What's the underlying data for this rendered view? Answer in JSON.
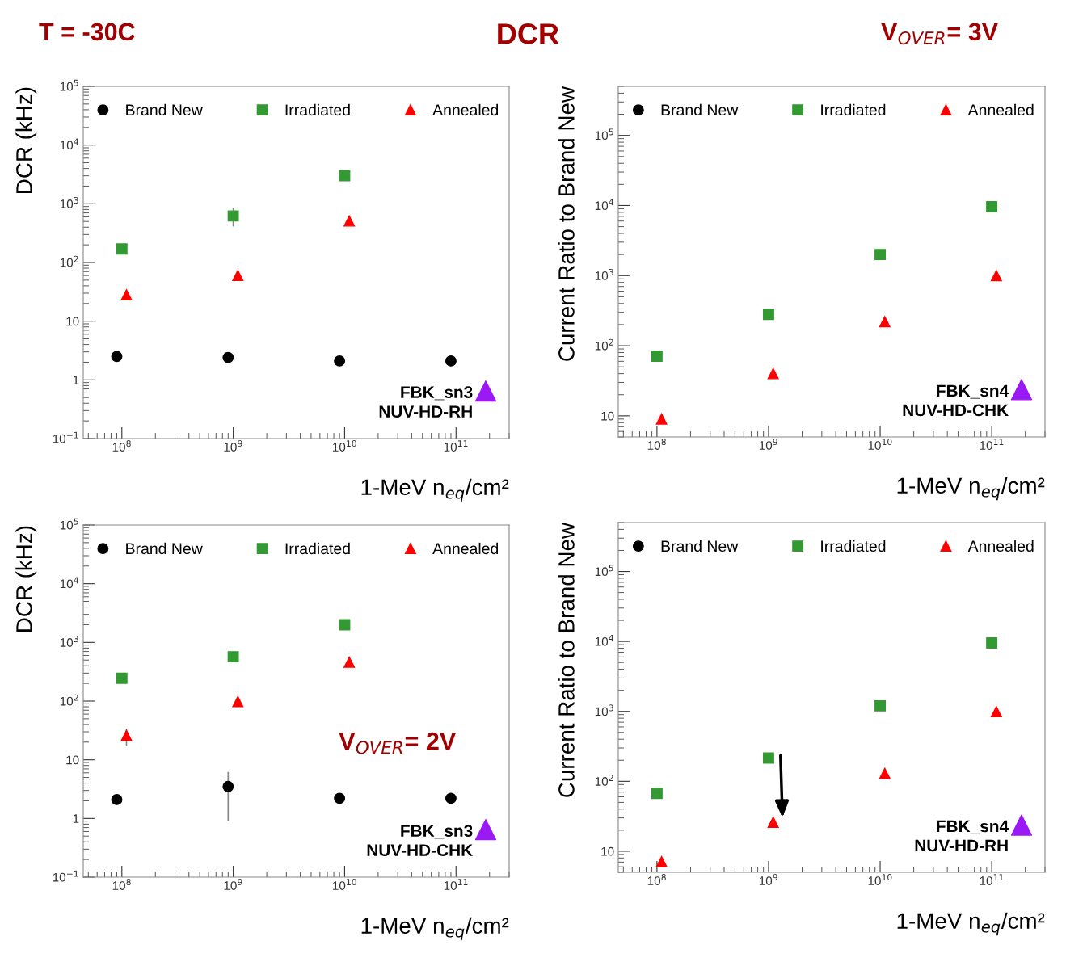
{
  "chart_data": [
    {
      "type": "scatter",
      "title": "DCR",
      "annotations": [
        "T = -30C",
        "FBK_sn3\nNUV-HD-RH"
      ],
      "xlabel": "1-MeV n$_{eq}$/cm²",
      "ylabel": "DCR (kHz)",
      "log": "xy",
      "grid": false,
      "legend": "top",
      "xlim": [
        45000000.0,
        300000000000.0
      ],
      "ylim": [
        0.1,
        100000
      ],
      "xticks": [
        {
          "value": 100000000.0,
          "label": "10$^{8}$"
        },
        {
          "value": 1000000000.0,
          "label": "10$^{9}$"
        },
        {
          "value": 10000000000.0,
          "label": "10$^{10}$"
        },
        {
          "value": 100000000000.0,
          "label": "10$^{11}$"
        }
      ],
      "yticks": [
        {
          "value": 0.1,
          "label": "10$^{−1}$"
        },
        1,
        10,
        {
          "value": 100,
          "label": "10$^{2}$"
        },
        {
          "value": 1000,
          "label": "10$^{3}$"
        },
        {
          "value": 10000,
          "label": "10$^{4}$"
        },
        {
          "value": 100000,
          "label": "10$^{5}$"
        }
      ],
      "series": [
        {
          "name": "Brand New",
          "color": "#000000",
          "marker": "circle",
          "x": [
            90000000.0,
            900000000.0,
            9000000000.0,
            90000000000.0
          ],
          "values": [
            2.5,
            2.4,
            2.1,
            2.1
          ]
        },
        {
          "name": "Irradiated",
          "color": "#339933",
          "marker": "square",
          "x": [
            100000000.0,
            1000000000.0,
            10000000000.0
          ],
          "values": [
            170,
            620,
            3000
          ],
          "errors": [
            null,
            [
              410,
              860
            ],
            null
          ]
        },
        {
          "name": "Annealed",
          "color": "#ff0000",
          "marker": "triangle",
          "x": [
            110000000.0,
            1100000000.0,
            11000000000.0
          ],
          "values": [
            28,
            60,
            510
          ]
        }
      ]
    },
    {
      "type": "scatter",
      "annotations": [
        "V$_{OVER}$= 3V",
        "FBK_sn4\nNUV-HD-CHK"
      ],
      "xlabel": "1-MeV n$_{eq}$/cm²",
      "ylabel": "Current Ratio to Brand New",
      "log": "xy",
      "grid": false,
      "legend": "top",
      "xlim": [
        45000000.0,
        300000000000.0
      ],
      "ylim": [
        5,
        500000
      ],
      "xticks": [
        {
          "value": 100000000.0,
          "label": "10$^{8}$"
        },
        {
          "value": 1000000000.0,
          "label": "10$^{9}$"
        },
        {
          "value": 10000000000.0,
          "label": "10$^{10}$"
        },
        {
          "value": 100000000000.0,
          "label": "10$^{11}$"
        }
      ],
      "yticks": [
        10,
        {
          "value": 100,
          "label": "10$^{2}$"
        },
        {
          "value": 1000,
          "label": "10$^{3}$"
        },
        {
          "value": 10000,
          "label": "10$^{4}$"
        },
        {
          "value": 100000,
          "label": "10$^{5}$"
        }
      ],
      "series": [
        {
          "name": "Brand New",
          "color": "#000000",
          "marker": "circle"
        },
        {
          "name": "Irradiated",
          "color": "#339933",
          "marker": "square",
          "x": [
            100000000.0,
            1000000000.0,
            10000000000.0,
            100000000000.0
          ],
          "values": [
            71,
            280,
            2000,
            9600
          ]
        },
        {
          "name": "Annealed",
          "color": "#ff0000",
          "marker": "triangle",
          "x": [
            110000000.0,
            1100000000.0,
            11000000000.0,
            110000000000.0
          ],
          "values": [
            9,
            40,
            220,
            1000
          ]
        }
      ]
    },
    {
      "type": "scatter",
      "annotations": [
        "V$_{OVER}$= 2V",
        "FBK_sn3\nNUV-HD-CHK"
      ],
      "xlabel": "1-MeV n$_{eq}$/cm²",
      "ylabel": "DCR (kHz)",
      "log": "xy",
      "grid": false,
      "legend": "top",
      "xlim": [
        45000000.0,
        300000000000.0
      ],
      "ylim": [
        0.1,
        100000
      ],
      "xticks": [
        {
          "value": 100000000.0,
          "label": "10$^{8}$"
        },
        {
          "value": 1000000000.0,
          "label": "10$^{9}$"
        },
        {
          "value": 10000000000.0,
          "label": "10$^{10}$"
        },
        {
          "value": 100000000000.0,
          "label": "10$^{11}$"
        }
      ],
      "yticks": [
        {
          "value": 0.1,
          "label": "10$^{−1}$"
        },
        1,
        10,
        {
          "value": 100,
          "label": "10$^{2}$"
        },
        {
          "value": 1000,
          "label": "10$^{3}$"
        },
        {
          "value": 10000,
          "label": "10$^{4}$"
        },
        {
          "value": 100000,
          "label": "10$^{5}$"
        }
      ],
      "series": [
        {
          "name": "Brand New",
          "color": "#000000",
          "marker": "circle",
          "x": [
            90000000.0,
            900000000.0,
            9000000000.0,
            90000000000.0
          ],
          "values": [
            2.1,
            3.5,
            2.2,
            2.2
          ],
          "errors": [
            null,
            [
              0.9,
              6.2
            ],
            null,
            null
          ]
        },
        {
          "name": "Irradiated",
          "color": "#339933",
          "marker": "square",
          "x": [
            100000000.0,
            1000000000.0,
            10000000000.0
          ],
          "values": [
            245,
            570,
            2000
          ]
        },
        {
          "name": "Annealed",
          "color": "#ff0000",
          "marker": "triangle",
          "x": [
            110000000.0,
            1100000000.0,
            11000000000.0
          ],
          "values": [
            26,
            98,
            460
          ],
          "errors": [
            [
              17,
              34
            ],
            null,
            null
          ]
        }
      ]
    },
    {
      "type": "scatter",
      "annotations": [
        "FBK_sn4\nNUV-HD-RH"
      ],
      "xlabel": "1-MeV n$_{eq}$/cm²",
      "ylabel": "Current Ratio to Brand New",
      "log": "xy",
      "grid": false,
      "legend": "top",
      "xlim": [
        45000000.0,
        300000000000.0
      ],
      "ylim": [
        5,
        500000
      ],
      "xticks": [
        {
          "value": 100000000.0,
          "label": "10$^{8}$"
        },
        {
          "value": 1000000000.0,
          "label": "10$^{9}$"
        },
        {
          "value": 10000000000.0,
          "label": "10$^{10}$"
        },
        {
          "value": 100000000000.0,
          "label": "10$^{11}$"
        }
      ],
      "yticks": [
        10,
        {
          "value": 100,
          "label": "10$^{2}$"
        },
        {
          "value": 1000,
          "label": "10$^{3}$"
        },
        {
          "value": 10000,
          "label": "10$^{4}$"
        },
        {
          "value": 100000,
          "label": "10$^{5}$"
        }
      ],
      "series": [
        {
          "name": "Brand New",
          "color": "#000000",
          "marker": "circle"
        },
        {
          "name": "Irradiated",
          "color": "#339933",
          "marker": "square",
          "x": [
            100000000.0,
            1000000000.0,
            10000000000.0,
            100000000000.0
          ],
          "values": [
            67,
            215,
            1200,
            9500
          ]
        },
        {
          "name": "Annealed",
          "color": "#ff0000",
          "marker": "triangle",
          "x": [
            110000000.0,
            1100000000.0,
            11000000000.0,
            110000000000.0
          ],
          "values": [
            7.1,
            26,
            130,
            990
          ]
        }
      ]
    }
  ]
}
